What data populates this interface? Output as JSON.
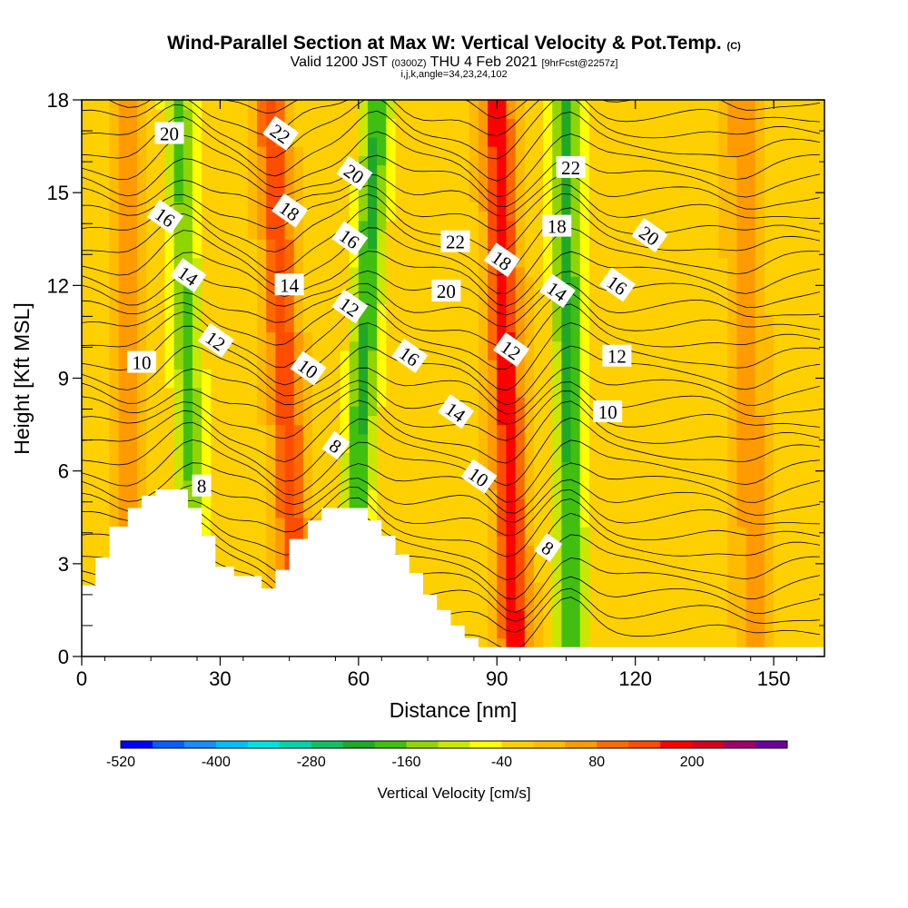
{
  "title": {
    "main": "Wind-Parallel Section at Max W: Vertical Velocity & Pot.Temp.",
    "main_mark": "(C)",
    "valid_prefix": "Valid 1200 JST",
    "valid_utc": "(0300Z)",
    "valid_date": "THU 4 Feb 2021",
    "forecast": "[9hrFcst@2257z]",
    "indices": "i,j,k,angle=34,23,24,102"
  },
  "chart_data": {
    "type": "heatmap",
    "xlabel": "Distance [nm]",
    "ylabel": "Height [Kft MSL]",
    "xlim": [
      0,
      161
    ],
    "ylim": [
      0,
      18
    ],
    "x_ticks": [
      "0",
      "30",
      "60",
      "90",
      "120",
      "150"
    ],
    "y_ticks": [
      "0",
      "3",
      "6",
      "9",
      "12",
      "15",
      "18"
    ],
    "colorbar": {
      "label": "Vertical Velocity [cm/s]",
      "tick_labels": [
        "-520",
        "-400",
        "-280",
        "-160",
        "-40",
        "80",
        "200"
      ],
      "levels": [
        -520,
        -480,
        -440,
        -400,
        -360,
        -320,
        -280,
        -240,
        -200,
        -160,
        -120,
        -80,
        -40,
        0,
        40,
        80,
        120,
        160,
        200,
        240,
        280
      ],
      "colors": [
        "#0000ff",
        "#0a5dff",
        "#1a8cff",
        "#00bfff",
        "#00e0e0",
        "#00d3a6",
        "#10c060",
        "#20a828",
        "#40bf10",
        "#90d400",
        "#c8e800",
        "#ffff00",
        "#ffd000",
        "#ffbb00",
        "#ff9b00",
        "#ff6a00",
        "#ff4d00",
        "#ff0000",
        "#d40020",
        "#a0006a",
        "#6a00a0"
      ]
    },
    "w_bands": [
      {
        "x_bottom": 10,
        "x_top": 10,
        "w": 80
      },
      {
        "x_bottom": 25,
        "x_top": 21,
        "w": -160
      },
      {
        "x_bottom": 47,
        "x_top": 41,
        "w": 160
      },
      {
        "x_bottom": 58,
        "x_top": 64,
        "w": -200
      },
      {
        "x_bottom": 94,
        "x_top": 90,
        "w": 200
      },
      {
        "x_bottom": 106,
        "x_top": 105,
        "w": -200
      },
      {
        "x_bottom": 146,
        "x_top": 143,
        "w": 80
      }
    ],
    "theta_contour_labels": [
      {
        "text": "20",
        "x": 19,
        "y": 16.9
      },
      {
        "text": "22",
        "x": 43,
        "y": 16.9
      },
      {
        "text": "20",
        "x": 59,
        "y": 15.6
      },
      {
        "text": "22",
        "x": 106,
        "y": 15.8
      },
      {
        "text": "16",
        "x": 18,
        "y": 14.2
      },
      {
        "text": "18",
        "x": 45,
        "y": 14.4
      },
      {
        "text": "18",
        "x": 103,
        "y": 13.9
      },
      {
        "text": "20",
        "x": 123,
        "y": 13.6
      },
      {
        "text": "16",
        "x": 58,
        "y": 13.5
      },
      {
        "text": "22",
        "x": 81,
        "y": 13.4
      },
      {
        "text": "18",
        "x": 91,
        "y": 12.8
      },
      {
        "text": "14",
        "x": 23,
        "y": 12.3
      },
      {
        "text": "14",
        "x": 45,
        "y": 12.0
      },
      {
        "text": "14",
        "x": 103,
        "y": 11.8
      },
      {
        "text": "16",
        "x": 116,
        "y": 12.0
      },
      {
        "text": "20",
        "x": 79,
        "y": 11.8
      },
      {
        "text": "12",
        "x": 58,
        "y": 11.3
      },
      {
        "text": "12",
        "x": 29,
        "y": 10.2
      },
      {
        "text": "10",
        "x": 13,
        "y": 9.5
      },
      {
        "text": "12",
        "x": 93,
        "y": 9.9
      },
      {
        "text": "16",
        "x": 71,
        "y": 9.7
      },
      {
        "text": "12",
        "x": 116,
        "y": 9.7
      },
      {
        "text": "10",
        "x": 49,
        "y": 9.3
      },
      {
        "text": "14",
        "x": 81,
        "y": 7.9
      },
      {
        "text": "10",
        "x": 114,
        "y": 7.9
      },
      {
        "text": "8",
        "x": 55,
        "y": 6.8
      },
      {
        "text": "10",
        "x": 86,
        "y": 5.8
      },
      {
        "text": "8",
        "x": 26,
        "y": 5.5
      },
      {
        "text": "8",
        "x": 101,
        "y": 3.5
      }
    ],
    "terrain": [
      [
        0,
        2.3
      ],
      [
        3,
        2.3
      ],
      [
        3,
        3.2
      ],
      [
        6,
        3.2
      ],
      [
        6,
        4.2
      ],
      [
        10,
        4.2
      ],
      [
        10,
        4.8
      ],
      [
        13,
        4.8
      ],
      [
        13,
        5.2
      ],
      [
        16,
        5.2
      ],
      [
        16,
        5.4
      ],
      [
        20,
        5.4
      ],
      [
        23,
        5.4
      ],
      [
        23,
        4.8
      ],
      [
        26,
        4.8
      ],
      [
        26,
        3.9
      ],
      [
        29,
        3.9
      ],
      [
        29,
        2.9
      ],
      [
        33,
        2.9
      ],
      [
        33,
        2.6
      ],
      [
        39,
        2.6
      ],
      [
        39,
        2.2
      ],
      [
        42,
        2.2
      ],
      [
        42,
        2.8
      ],
      [
        45,
        2.8
      ],
      [
        45,
        3.8
      ],
      [
        49,
        3.8
      ],
      [
        49,
        4.4
      ],
      [
        52,
        4.4
      ],
      [
        52,
        4.8
      ],
      [
        59,
        4.8
      ],
      [
        62,
        4.8
      ],
      [
        62,
        4.4
      ],
      [
        65,
        4.4
      ],
      [
        65,
        3.9
      ],
      [
        68,
        3.9
      ],
      [
        68,
        3.3
      ],
      [
        71,
        3.3
      ],
      [
        71,
        2.7
      ],
      [
        74,
        2.7
      ],
      [
        74,
        2.0
      ],
      [
        77,
        2.0
      ],
      [
        77,
        1.5
      ],
      [
        80,
        1.5
      ],
      [
        80,
        1.0
      ],
      [
        83,
        1.0
      ],
      [
        83,
        0.6
      ],
      [
        86,
        0.6
      ],
      [
        86,
        0.3
      ],
      [
        161,
        0.3
      ]
    ]
  }
}
